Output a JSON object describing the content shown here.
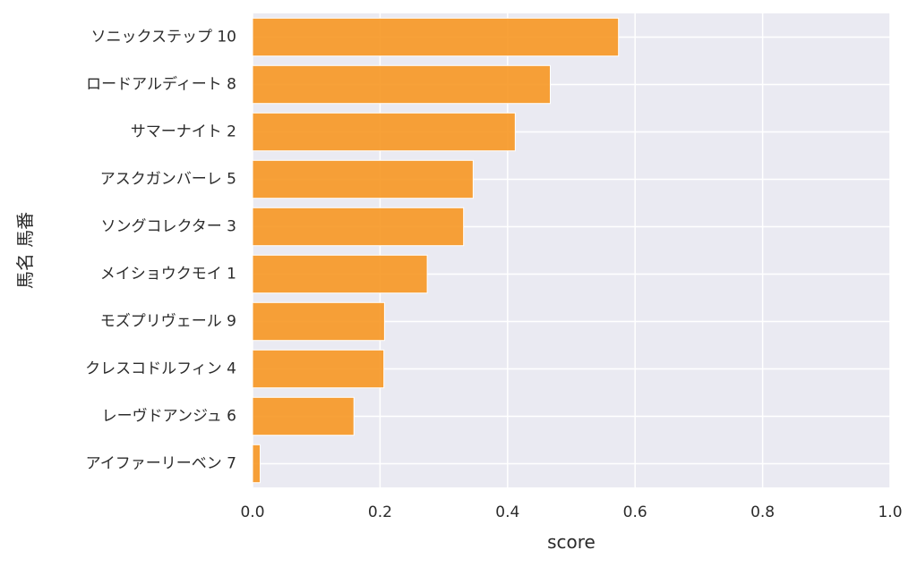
{
  "chart_data": {
    "type": "bar",
    "orientation": "horizontal",
    "categories": [
      "ソニックステップ 10",
      "ロードアルディート 8",
      "サマーナイト 2",
      "アスクガンバーレ 5",
      "ソングコレクター 3",
      "メイショウクモイ 1",
      "モズプリヴェール 9",
      "クレスコドルフィン 4",
      "レーヴドアンジュ 6",
      "アイファーリーベン 7"
    ],
    "values": [
      0.574,
      0.467,
      0.412,
      0.346,
      0.331,
      0.274,
      0.207,
      0.206,
      0.159,
      0.012
    ],
    "xlabel": "score",
    "ylabel": "馬名 馬番",
    "xlim": [
      0.0,
      1.0
    ],
    "xticks": [
      "0.0",
      "0.2",
      "0.4",
      "0.6",
      "0.8",
      "1.0"
    ],
    "grid": true,
    "bar_color": "#F7941D",
    "plot_background": "#EAEAF2",
    "grid_color": "#FFFFFF"
  }
}
